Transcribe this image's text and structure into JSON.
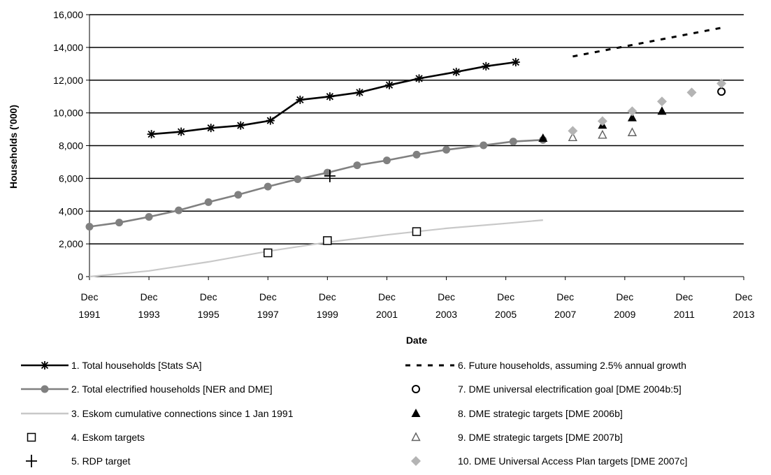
{
  "chart_data": {
    "type": "line",
    "xlabel": "Date",
    "ylabel": "Households ('000)",
    "ylim": [
      0,
      16000
    ],
    "xlim": [
      "1991-12",
      "2013-12"
    ],
    "grid": "horizontal",
    "legend_position": "bottom",
    "y_ticks": [
      "0",
      "2,000",
      "4,000",
      "6,000",
      "8,000",
      "10,000",
      "12,000",
      "14,000",
      "16,000"
    ],
    "x_ticks": [
      {
        "line1": "Dec",
        "line2": "1991",
        "date": "1991-12"
      },
      {
        "line1": "Dec",
        "line2": "1993",
        "date": "1993-12"
      },
      {
        "line1": "Dec",
        "line2": "1995",
        "date": "1995-12"
      },
      {
        "line1": "Dec",
        "line2": "1997",
        "date": "1997-12"
      },
      {
        "line1": "Dec",
        "line2": "1999",
        "date": "1999-12"
      },
      {
        "line1": "Dec",
        "line2": "2001",
        "date": "2001-12"
      },
      {
        "line1": "Dec",
        "line2": "2003",
        "date": "2003-12"
      },
      {
        "line1": "Dec",
        "line2": "2005",
        "date": "2005-12"
      },
      {
        "line1": "Dec",
        "line2": "2007",
        "date": "2007-12"
      },
      {
        "line1": "Dec",
        "line2": "2009",
        "date": "2009-12"
      },
      {
        "line1": "Dec",
        "line2": "2011",
        "date": "2011-12"
      },
      {
        "line1": "Dec",
        "line2": "2013",
        "date": "2013-12"
      }
    ],
    "series": [
      {
        "name": "1. Total households [Stats SA]",
        "kind": "line",
        "marker": "asterisk",
        "color": "#000000",
        "points": [
          [
            "1994-01",
            8700
          ],
          [
            "1995-01",
            8850
          ],
          [
            "1996-01",
            9080
          ],
          [
            "1997-01",
            9230
          ],
          [
            "1998-01",
            9530
          ],
          [
            "1999-01",
            10800
          ],
          [
            "2000-01",
            11000
          ],
          [
            "2001-01",
            11250
          ],
          [
            "2002-01",
            11700
          ],
          [
            "2003-01",
            12100
          ],
          [
            "2004-04",
            12500
          ],
          [
            "2005-04",
            12850
          ],
          [
            "2006-04",
            13100
          ]
        ]
      },
      {
        "name": "2. Total electrified households [NER and DME]",
        "kind": "line",
        "marker": "circle",
        "color": "#808080",
        "points": [
          [
            "1991-12",
            3050
          ],
          [
            "1992-12",
            3300
          ],
          [
            "1993-12",
            3650
          ],
          [
            "1994-12",
            4050
          ],
          [
            "1995-12",
            4550
          ],
          [
            "1996-12",
            5000
          ],
          [
            "1997-12",
            5500
          ],
          [
            "1998-12",
            5950
          ],
          [
            "1999-12",
            6350
          ],
          [
            "2000-12",
            6800
          ],
          [
            "2001-12",
            7100
          ],
          [
            "2002-12",
            7450
          ],
          [
            "2003-12",
            7750
          ],
          [
            "2005-03",
            8020
          ],
          [
            "2006-03",
            8250
          ],
          [
            "2007-03",
            8350
          ]
        ]
      },
      {
        "name": "3. Eskom cumulative connections since 1 Jan 1991",
        "kind": "line",
        "marker": "none",
        "color": "#c8c8c8",
        "points": [
          [
            "1991-12",
            0
          ],
          [
            "1993-12",
            350
          ],
          [
            "1995-12",
            900
          ],
          [
            "1997-12",
            1550
          ],
          [
            "1999-12",
            2100
          ],
          [
            "2001-12",
            2550
          ],
          [
            "2003-12",
            2950
          ],
          [
            "2005-12",
            3250
          ],
          [
            "2007-03",
            3450
          ]
        ]
      },
      {
        "name": "4. Eskom targets",
        "kind": "scatter",
        "marker": "square-open",
        "color": "#000000",
        "points": [
          [
            "1997-12",
            1450
          ],
          [
            "1999-12",
            2200
          ],
          [
            "2002-12",
            2750
          ]
        ]
      },
      {
        "name": "5. RDP target",
        "kind": "scatter",
        "marker": "plus",
        "color": "#000000",
        "points": [
          [
            "2000-01",
            6150
          ]
        ]
      },
      {
        "name": "6. Future households, assuming 2.5% annual growth",
        "kind": "line",
        "marker": "none",
        "dash": true,
        "color": "#000000",
        "points": [
          [
            "2008-03",
            13450
          ],
          [
            "2013-03",
            15200
          ]
        ]
      },
      {
        "name": "7. DME universal electrification goal [DME 2004b:5]",
        "kind": "scatter",
        "marker": "circle-open",
        "color": "#000000",
        "points": [
          [
            "2013-03",
            11300
          ]
        ]
      },
      {
        "name": "8. DME strategic targets [DME 2006b]",
        "kind": "scatter",
        "marker": "triangle-filled",
        "color": "#000000",
        "points": [
          [
            "2007-03",
            8450
          ],
          [
            "2009-03",
            9250
          ],
          [
            "2010-03",
            9700
          ],
          [
            "2011-03",
            10100
          ]
        ]
      },
      {
        "name": "9. DME strategic targets [DME 2007b]",
        "kind": "scatter",
        "marker": "triangle-open",
        "color": "#000000",
        "points": [
          [
            "2008-03",
            8500
          ],
          [
            "2009-03",
            8650
          ],
          [
            "2010-03",
            8800
          ]
        ]
      },
      {
        "name": "10. DME Universal Access Plan targets [DME 2007c]",
        "kind": "scatter",
        "marker": "diamond",
        "color": "#b4b4b4",
        "points": [
          [
            "2008-03",
            8900
          ],
          [
            "2009-03",
            9500
          ],
          [
            "2010-03",
            10100
          ],
          [
            "2011-03",
            10700
          ],
          [
            "2012-03",
            11250
          ],
          [
            "2013-03",
            11800
          ]
        ]
      }
    ]
  }
}
